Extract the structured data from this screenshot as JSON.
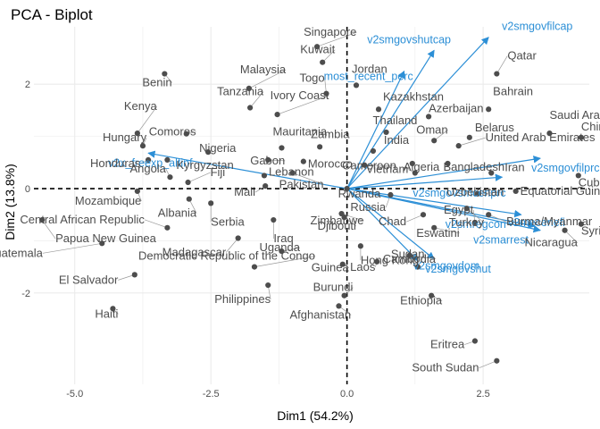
{
  "chart_data": {
    "type": "scatter",
    "title": "PCA - Biplot",
    "xlabel": "Dim1 (54.2%)",
    "ylabel": "Dim2 (13.8%)",
    "xlim": [
      -5.75,
      4.45
    ],
    "ylim": [
      -3.75,
      3.1
    ],
    "xticks": [
      -5.0,
      -2.5,
      0.0,
      2.5
    ],
    "xtick_labels": [
      "-5.0",
      "-2.5",
      "0.0",
      "2.5"
    ],
    "yticks": [
      -2,
      0,
      2
    ],
    "ytick_labels": [
      "-2",
      "0",
      "2"
    ],
    "grid": true,
    "colors": {
      "points": "#4d4d4d",
      "point_labels": "#4d4d4d",
      "arrows": "#2c8fd6",
      "grid": "#ebebeb",
      "zero_lines": "#000000"
    },
    "points": [
      {
        "label": "Singapore",
        "x": -0.55,
        "y": 2.72
      },
      {
        "label": "Kuwait",
        "x": -0.45,
        "y": 2.42
      },
      {
        "label": "Jordan",
        "x": 0.17,
        "y": 1.98
      },
      {
        "label": "Togo",
        "x": -0.38,
        "y": 1.82
      },
      {
        "label": "Qatar",
        "x": 2.75,
        "y": 2.2
      },
      {
        "label": "Benin",
        "x": -3.35,
        "y": 2.2
      },
      {
        "label": "Malaysia",
        "x": -1.8,
        "y": 1.92
      },
      {
        "label": "Kazakhstan",
        "x": 0.58,
        "y": 1.52
      },
      {
        "label": "Bahrain",
        "x": 2.6,
        "y": 1.52
      },
      {
        "label": "Tanzania",
        "x": -1.78,
        "y": 1.55
      },
      {
        "label": "Ivory Coast",
        "x": -1.28,
        "y": 1.42
      },
      {
        "label": "Azerbaijan",
        "x": 1.5,
        "y": 1.38
      },
      {
        "label": "Saudi Arabia",
        "x": 3.72,
        "y": 1.06
      },
      {
        "label": "Kenya",
        "x": -3.85,
        "y": 1.06
      },
      {
        "label": "Thailand",
        "x": 0.72,
        "y": 1.08
      },
      {
        "label": "Comoros",
        "x": -2.95,
        "y": 1.05
      },
      {
        "label": "Mauritania",
        "x": -1.2,
        "y": 0.78
      },
      {
        "label": "Oman",
        "x": 1.6,
        "y": 0.92
      },
      {
        "label": "Belarus",
        "x": 2.25,
        "y": 0.98
      },
      {
        "label": "China",
        "x": 4.3,
        "y": 0.98
      },
      {
        "label": "Hungary",
        "x": -3.75,
        "y": 0.82
      },
      {
        "label": "Zambia",
        "x": -0.5,
        "y": 0.8
      },
      {
        "label": "Nigeria",
        "x": -2.55,
        "y": 0.7
      },
      {
        "label": "India",
        "x": 0.48,
        "y": 0.72
      },
      {
        "label": "United Arab Emirates",
        "x": 2.05,
        "y": 0.82
      },
      {
        "label": "Honduras",
        "x": -3.65,
        "y": 0.55
      },
      {
        "label": "Kyrgyzstan",
        "x": -3.3,
        "y": 0.55
      },
      {
        "label": "Gabon",
        "x": -1.45,
        "y": 0.55
      },
      {
        "label": "Morocco",
        "x": -0.8,
        "y": 0.52
      },
      {
        "label": "Cameroon",
        "x": 0.32,
        "y": 0.45
      },
      {
        "label": "Algeria",
        "x": 1.2,
        "y": 0.48
      },
      {
        "label": "Bangladesh",
        "x": 1.85,
        "y": 0.48
      },
      {
        "label": "Angola",
        "x": -3.25,
        "y": 0.22
      },
      {
        "label": "Fiji",
        "x": -2.92,
        "y": 0.12
      },
      {
        "label": "Lebanon",
        "x": -1.52,
        "y": 0.25
      },
      {
        "label": "Pakistan",
        "x": -1.0,
        "y": 0.3
      },
      {
        "label": "Cuba",
        "x": 4.25,
        "y": 0.25
      },
      {
        "label": "Iran",
        "x": 2.65,
        "y": 0.3
      },
      {
        "label": "Vietnam",
        "x": 1.25,
        "y": 0.3
      },
      {
        "label": "Mozambique",
        "x": -3.85,
        "y": -0.05
      },
      {
        "label": "Rwanda",
        "x": 0.0,
        "y": 0.0
      },
      {
        "label": "Mali",
        "x": -1.5,
        "y": 0.05
      },
      {
        "label": "Equatorial Guinea",
        "x": 3.1,
        "y": -0.05
      },
      {
        "label": "Russia",
        "x": 0.8,
        "y": -0.12
      },
      {
        "label": "Uzbekistan",
        "x": 2.4,
        "y": -0.1
      },
      {
        "label": "Albania",
        "x": -2.9,
        "y": -0.2
      },
      {
        "label": "Serbia",
        "x": -2.5,
        "y": -0.28
      },
      {
        "label": "Papua New Guinea",
        "x": -5.6,
        "y": -0.6
      },
      {
        "label": "Zimbabwe",
        "x": -0.1,
        "y": -0.48
      },
      {
        "label": "Turkey",
        "x": 2.2,
        "y": -0.38
      },
      {
        "label": "Burma/Myanmar",
        "x": 2.6,
        "y": -0.5
      },
      {
        "label": "Chad",
        "x": 1.4,
        "y": -0.5
      },
      {
        "label": "Iraq",
        "x": -1.35,
        "y": -0.6
      },
      {
        "label": "Djibouti",
        "x": -0.05,
        "y": -0.55
      },
      {
        "label": "Egypt",
        "x": 2.35,
        "y": -0.65
      },
      {
        "label": "Eswatini",
        "x": 1.6,
        "y": -0.75
      },
      {
        "label": "Syria",
        "x": 4.3,
        "y": -0.68
      },
      {
        "label": "Central African Republic",
        "x": -3.3,
        "y": -0.75
      },
      {
        "label": "Guatemala",
        "x": -4.5,
        "y": -1.05
      },
      {
        "label": "Madagascar",
        "x": -2.0,
        "y": -0.95
      },
      {
        "label": "Uganda",
        "x": -1.2,
        "y": -1.2
      },
      {
        "label": "Hong Kong",
        "x": 0.25,
        "y": -1.1
      },
      {
        "label": "Cambodia",
        "x": 1.15,
        "y": -1.28
      },
      {
        "label": "Nicaragua",
        "x": 4.0,
        "y": -0.8
      },
      {
        "label": "Democratic Republic of the Congo",
        "x": -1.7,
        "y": -1.5
      },
      {
        "label": "El Salvador",
        "x": -3.9,
        "y": -1.65
      },
      {
        "label": "Guinea",
        "x": -0.08,
        "y": -1.45
      },
      {
        "label": "Laos",
        "x": 0.55,
        "y": -1.4
      },
      {
        "label": "Sudan",
        "x": 1.3,
        "y": -1.5
      },
      {
        "label": "Philippines",
        "x": -1.45,
        "y": -1.85
      },
      {
        "label": "Burundi",
        "x": -0.05,
        "y": -2.05
      },
      {
        "label": "Ethiopia",
        "x": 1.55,
        "y": -2.05
      },
      {
        "label": "Haiti",
        "x": -4.3,
        "y": -2.3
      },
      {
        "label": "Afghanistan",
        "x": -0.15,
        "y": -2.25
      },
      {
        "label": "Eritrea",
        "x": 2.35,
        "y": -2.92
      },
      {
        "label": "South Sudan",
        "x": 2.75,
        "y": -3.3
      }
    ],
    "arrows": [
      {
        "label": "v2smgovfilcap",
        "x": 2.6,
        "y": 2.9
      },
      {
        "label": "v2smgovshutcap",
        "x": 1.6,
        "y": 2.65
      },
      {
        "label": "most_recent_perc",
        "x": 1.05,
        "y": 2.25
      },
      {
        "label": "v2x_freexp_altinf",
        "x": -3.65,
        "y": 0.68
      },
      {
        "label": "v2smgovsmcenprc",
        "x": 2.85,
        "y": 0.22
      },
      {
        "label": "v2smgovfilprc",
        "x": 3.55,
        "y": 0.58
      },
      {
        "label": "v2smregcon",
        "x": 3.2,
        "y": -0.5
      },
      {
        "label": "v2smarrest",
        "x": 3.55,
        "y": -0.8
      },
      {
        "label": "v2mecenefi",
        "x": 3.45,
        "y": -0.72
      },
      {
        "label": "v2smgovshut",
        "x": 1.6,
        "y": -1.35
      },
      {
        "label": "v2smgovdom",
        "x": 1.3,
        "y": -1.38
      }
    ],
    "point_label_offsets": {
      "Singapore": [
        -15,
        -12
      ],
      "Kuwait": [
        -25,
        -10
      ],
      "Jordan": [
        -5,
        -14
      ],
      "Togo": [
        -30,
        -13
      ],
      "Qatar": [
        12,
        -16
      ],
      "Benin": [
        -25,
        14
      ],
      "Malaysia": [
        -10,
        -17
      ],
      "Kazakhstan": [
        5,
        -10
      ],
      "Bahrain": [
        5,
        -16
      ],
      "Tanzania": [
        -37,
        -14
      ],
      "Ivory Coast": [
        -8,
        -17
      ],
      "Azerbaijan": [
        0,
        -5
      ],
      "Saudi Arabia": [
        0,
        -16
      ],
      "Kenya": [
        -15,
        -26
      ],
      "Thailand": [
        -15,
        -9
      ],
      "Comoros": [
        -42,
        2
      ],
      "Mauritania": [
        -10,
        -14
      ],
      "Oman": [
        -20,
        -8
      ],
      "Belarus": [
        6,
        -7
      ],
      "China": [
        0,
        -8
      ],
      "Hungary": [
        -45,
        -5
      ],
      "Zambia": [
        -10,
        -10
      ],
      "Nigeria": [
        -10,
        0
      ],
      "India": [
        12,
        -8
      ],
      "United Arab Emirates": [
        30,
        -5
      ],
      "Honduras": [
        -65,
        8
      ],
      "Kyrgyzstan": [
        10,
        10
      ],
      "Gabon": [
        -20,
        5
      ],
      "Morocco": [
        5,
        7
      ],
      "Cameroon": [
        -25,
        5
      ],
      "Algeria": [
        -10,
        8
      ],
      "Bangladesh": [
        -5,
        8
      ],
      "Angola": [
        -45,
        -5
      ],
      "Fiji": [
        25,
        -7
      ],
      "Lebanon": [
        5,
        0
      ],
      "Pakistan": [
        -15,
        17
      ],
      "Cuba": [
        0,
        12
      ],
      "Iran": [
        15,
        -2
      ],
      "Vietnam": [
        -55,
        0
      ],
      "Mozambique": [
        -70,
        15
      ],
      "Rwanda": [
        -10,
        10
      ],
      "Mali": [
        -35,
        11
      ],
      "Equatorial Guinea": [
        5,
        4
      ],
      "Russia": [
        -45,
        18
      ],
      "Uzbekistan": [
        -35,
        2
      ],
      "Albania": [
        -35,
        20
      ],
      "Serbia": [
        0,
        25
      ],
      "Papua New Guinea": [
        15,
        25
      ],
      "Zimbabwe": [
        -35,
        12
      ],
      "Turkey": [
        -20,
        20
      ],
      "Burma/Myanmar": [
        20,
        12
      ],
      "Chad": [
        -50,
        12
      ],
      "Iraq": [
        0,
        25
      ],
      "Djibouti": [
        -30,
        14
      ],
      "Egypt": [
        -35,
        -10
      ],
      "Eswatini": [
        -20,
        10
      ],
      "Syria": [
        0,
        12
      ],
      "Central African Republic": [
        -165,
        -5
      ],
      "Guatemala": [
        -130,
        15
      ],
      "Madagascar": [
        -85,
        20
      ],
      "Uganda": [
        -25,
        0
      ],
      "Hong Kong": [
        0,
        20
      ],
      "Cambodia": [
        -30,
        8
      ],
      "Nicaragua": [
        -45,
        18
      ],
      "Democratic Republic of the Congo": [
        -130,
        -8
      ],
      "El Salvador": [
        -85,
        10
      ],
      "Guinea": [
        -35,
        8
      ],
      "Laos": [
        -30,
        10
      ],
      "Sudan": [
        -30,
        -10
      ],
      "Philippines": [
        -60,
        20
      ],
      "Burundi": [
        -35,
        -5
      ],
      "Ethiopia": [
        -35,
        10
      ],
      "Haiti": [
        -20,
        10
      ],
      "Afghanistan": [
        -55,
        14
      ],
      "Eritrea": [
        -50,
        8
      ],
      "South Sudan": [
        -95,
        12
      ]
    },
    "arrow_label_offsets": {
      "v2smgovfilcap": [
        15,
        -8
      ],
      "v2smgovshutcap": [
        -75,
        -8
      ],
      "most_recent_perc": [
        -90,
        10
      ],
      "v2x_freexp_altinf": [
        -45,
        15
      ],
      "v2smgovsmcenprc": [
        -100,
        22
      ],
      "v2smgovfilprc": [
        -10,
        15
      ],
      "v2smregcon": [
        -85,
        15
      ],
      "v2smarrest": [
        -75,
        15
      ],
      "v2mecenefi": [
        -30,
        0
      ],
      "v2smgovshut": [
        -10,
        15
      ],
      "v2smgovdom": [
        -5,
        10
      ]
    }
  }
}
